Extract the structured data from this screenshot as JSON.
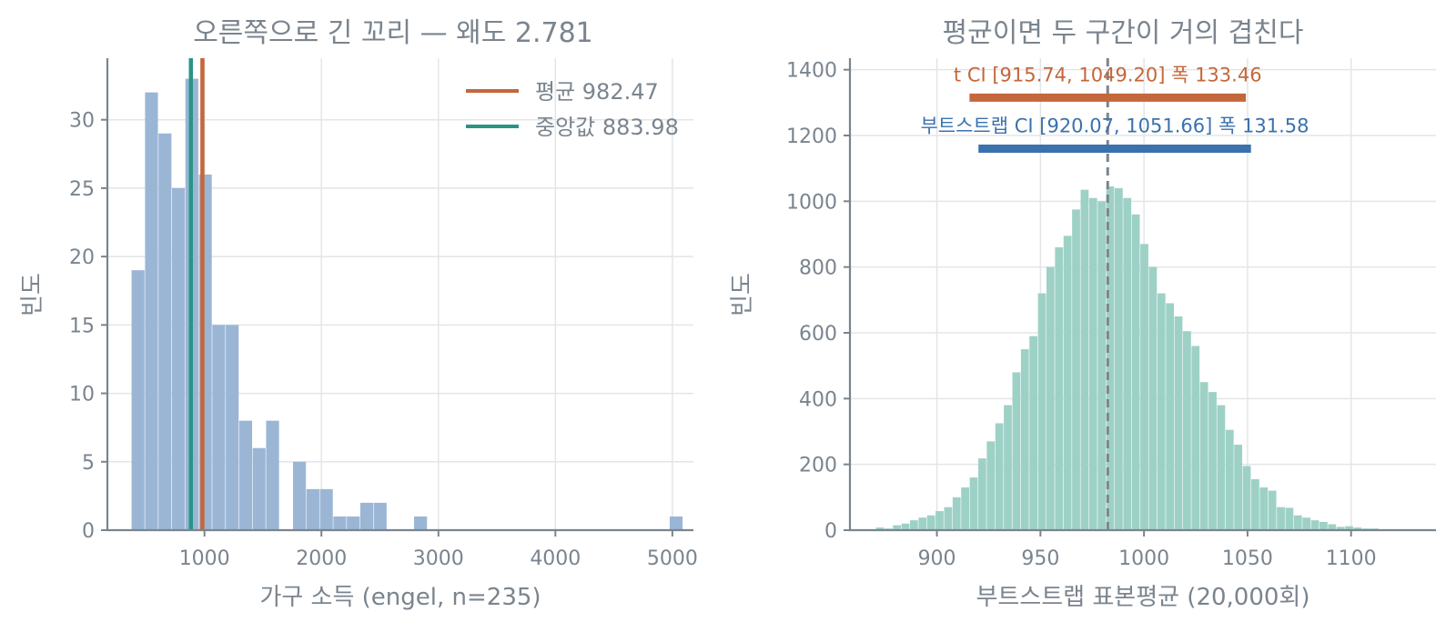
{
  "colors": {
    "text": "#7a848e",
    "hist_left": "#9bb6d5",
    "hist_right": "#9ed1c6",
    "mean_line": "#c4673a",
    "median_line": "#2a9486",
    "t_ci": "#c4673a",
    "boot_ci": "#3a72ad",
    "center_dashed": "#7a848e"
  },
  "chart_data": [
    {
      "type": "bar",
      "subtype": "histogram",
      "title": "오른쪽으로 긴 꼬리 — 왜도 2.781",
      "xlabel": "가구 소득 (engel, n=235)",
      "ylabel": "빈도",
      "xlim": [
        170,
        5180
      ],
      "ylim": [
        0,
        34.5
      ],
      "xticks": [
        1000,
        2000,
        3000,
        4000,
        5000
      ],
      "xtick_labels": [
        "1000",
        "2000",
        "3000",
        "4000",
        "5000"
      ],
      "yticks": [
        0,
        5,
        10,
        15,
        20,
        25,
        30
      ],
      "ytick_labels": [
        "0",
        "5",
        "10",
        "15",
        "20",
        "25",
        "30"
      ],
      "grid": true,
      "bin_start": 377,
      "bin_width": 115,
      "counts": [
        19,
        32,
        29,
        25,
        33,
        26,
        15,
        15,
        8,
        6,
        8,
        0,
        5,
        3,
        3,
        1,
        1,
        2,
        2,
        0,
        0,
        1,
        0,
        0,
        0,
        0,
        0,
        0,
        0,
        0,
        0,
        0,
        0,
        0,
        0,
        0,
        0,
        0,
        0,
        0,
        1
      ],
      "vlines": [
        {
          "name": "평균 982.47",
          "x": 982.47,
          "color": "#c4673a"
        },
        {
          "name": "중앙값 883.98",
          "x": 883.98,
          "color": "#2a9486"
        }
      ],
      "legend_position": "top-right"
    },
    {
      "type": "bar",
      "subtype": "histogram",
      "title": "평균이면 두 구간이 거의 겹친다",
      "xlabel": "부트스트랩 표본평균 (20,000회)",
      "ylabel": "빈도",
      "xlim": [
        858,
        1141
      ],
      "ylim": [
        0,
        1435
      ],
      "xticks": [
        900,
        950,
        1000,
        1050,
        1100
      ],
      "xtick_labels": [
        "900",
        "950",
        "1000",
        "1050",
        "1100"
      ],
      "yticks": [
        0,
        200,
        400,
        600,
        800,
        1000,
        1200,
        1400
      ],
      "ytick_labels": [
        "0",
        "200",
        "400",
        "600",
        "800",
        "1000",
        "1200",
        "1400"
      ],
      "grid": true,
      "bin_start": 866.4,
      "bin_width": 4.12,
      "counts": [
        2,
        8,
        5,
        15,
        20,
        30,
        38,
        45,
        58,
        70,
        100,
        130,
        160,
        218,
        270,
        325,
        380,
        480,
        550,
        590,
        720,
        800,
        860,
        895,
        975,
        1035,
        1010,
        1000,
        1045,
        1040,
        1010,
        960,
        870,
        800,
        720,
        690,
        650,
        605,
        560,
        450,
        420,
        380,
        305,
        260,
        195,
        155,
        130,
        120,
        70,
        68,
        45,
        38,
        30,
        25,
        18,
        10,
        12,
        8,
        5,
        5,
        2,
        1,
        1,
        1
      ],
      "center_line": {
        "x": 982.47,
        "style": "dashed",
        "color": "#7a848e"
      },
      "intervals": [
        {
          "label": "t CI [915.74, 1049.20] 폭 133.46",
          "lo": 915.74,
          "hi": 1049.2,
          "y": 1315,
          "color": "#c4673a"
        },
        {
          "label": "부트스트랩 CI [920.07, 1051.66] 폭 131.58",
          "lo": 920.07,
          "hi": 1051.66,
          "y": 1160,
          "color": "#3a72ad"
        }
      ]
    }
  ]
}
